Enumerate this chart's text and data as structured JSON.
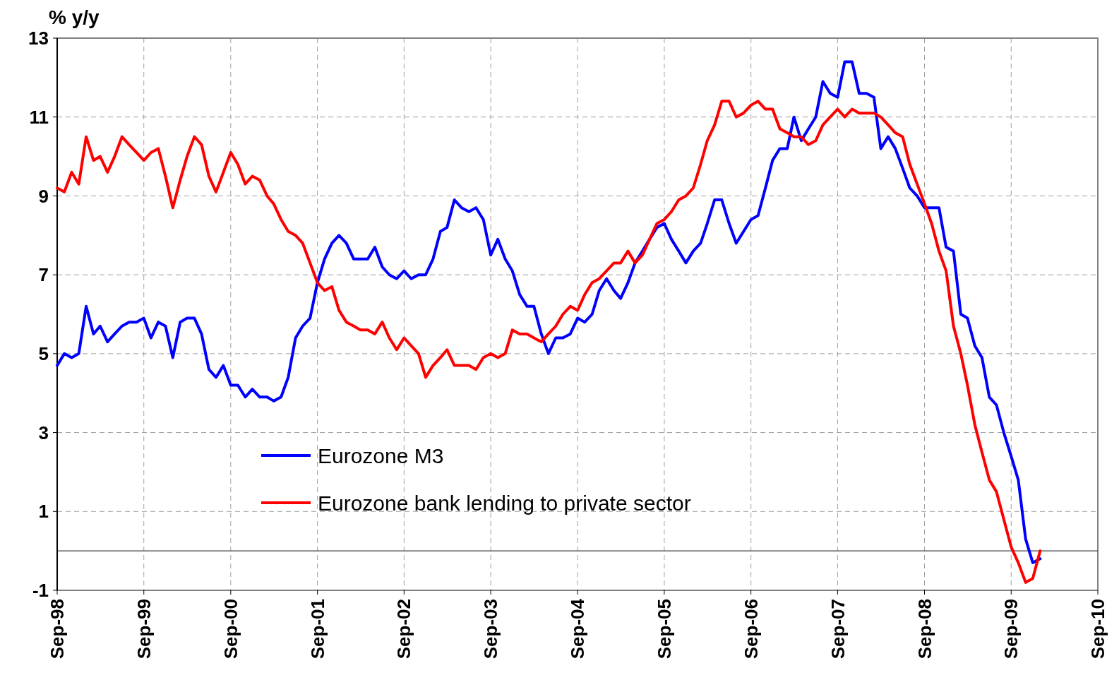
{
  "chart_data": {
    "type": "line",
    "ylabel": "% y/y",
    "x": [
      "1998-09",
      "1998-10",
      "1998-11",
      "1998-12",
      "1999-01",
      "1999-02",
      "1999-03",
      "1999-04",
      "1999-05",
      "1999-06",
      "1999-07",
      "1999-08",
      "1999-09",
      "1999-10",
      "1999-11",
      "1999-12",
      "2000-01",
      "2000-02",
      "2000-03",
      "2000-04",
      "2000-05",
      "2000-06",
      "2000-07",
      "2000-08",
      "2000-09",
      "2000-10",
      "2000-11",
      "2000-12",
      "2001-01",
      "2001-02",
      "2001-03",
      "2001-04",
      "2001-05",
      "2001-06",
      "2001-07",
      "2001-08",
      "2001-09",
      "2001-10",
      "2001-11",
      "2001-12",
      "2002-01",
      "2002-02",
      "2002-03",
      "2002-04",
      "2002-05",
      "2002-06",
      "2002-07",
      "2002-08",
      "2002-09",
      "2002-10",
      "2002-11",
      "2002-12",
      "2003-01",
      "2003-02",
      "2003-03",
      "2003-04",
      "2003-05",
      "2003-06",
      "2003-07",
      "2003-08",
      "2003-09",
      "2003-10",
      "2003-11",
      "2003-12",
      "2004-01",
      "2004-02",
      "2004-03",
      "2004-04",
      "2004-05",
      "2004-06",
      "2004-07",
      "2004-08",
      "2004-09",
      "2004-10",
      "2004-11",
      "2004-12",
      "2005-01",
      "2005-02",
      "2005-03",
      "2005-04",
      "2005-05",
      "2005-06",
      "2005-07",
      "2005-08",
      "2005-09",
      "2005-10",
      "2005-11",
      "2005-12",
      "2006-01",
      "2006-02",
      "2006-03",
      "2006-04",
      "2006-05",
      "2006-06",
      "2006-07",
      "2006-08",
      "2006-09",
      "2006-10",
      "2006-11",
      "2006-12",
      "2007-01",
      "2007-02",
      "2007-03",
      "2007-04",
      "2007-05",
      "2007-06",
      "2007-07",
      "2007-08",
      "2007-09",
      "2007-10",
      "2007-11",
      "2007-12",
      "2008-01",
      "2008-02",
      "2008-03",
      "2008-04",
      "2008-05",
      "2008-06",
      "2008-07",
      "2008-08",
      "2008-09",
      "2008-10",
      "2008-11",
      "2008-12",
      "2009-01",
      "2009-02",
      "2009-03",
      "2009-04",
      "2009-05",
      "2009-06",
      "2009-07",
      "2009-08",
      "2009-09",
      "2009-10",
      "2009-11",
      "2009-12",
      "2010-01"
    ],
    "series": [
      {
        "name": "Eurozone M3",
        "color": "#0000ff",
        "values": [
          4.7,
          5.0,
          4.9,
          5.0,
          6.2,
          5.5,
          5.7,
          5.3,
          5.5,
          5.7,
          5.8,
          5.8,
          5.9,
          5.4,
          5.8,
          5.7,
          4.9,
          5.8,
          5.9,
          5.9,
          5.5,
          4.6,
          4.4,
          4.7,
          4.2,
          4.2,
          3.9,
          4.1,
          3.9,
          3.9,
          3.8,
          3.9,
          4.4,
          5.4,
          5.7,
          5.9,
          6.8,
          7.4,
          7.8,
          8.0,
          7.8,
          7.4,
          7.4,
          7.4,
          7.7,
          7.2,
          7.0,
          6.9,
          7.1,
          6.9,
          7.0,
          7.0,
          7.4,
          8.1,
          8.2,
          8.9,
          8.7,
          8.6,
          8.7,
          8.4,
          7.5,
          7.9,
          7.4,
          7.1,
          6.5,
          6.2,
          6.2,
          5.5,
          5.0,
          5.4,
          5.4,
          5.5,
          5.9,
          5.8,
          6.0,
          6.6,
          6.9,
          6.6,
          6.4,
          6.8,
          7.3,
          7.6,
          7.9,
          8.2,
          8.3,
          7.9,
          7.6,
          7.3,
          7.6,
          7.8,
          8.3,
          8.9,
          8.9,
          8.3,
          7.8,
          8.1,
          8.4,
          8.5,
          9.2,
          9.9,
          10.2,
          10.2,
          11.0,
          10.4,
          10.7,
          11.0,
          11.9,
          11.6,
          11.5,
          12.4,
          12.4,
          11.6,
          11.6,
          11.5,
          10.2,
          10.5,
          10.2,
          9.7,
          9.2,
          9.0,
          8.7,
          8.7,
          8.7,
          7.7,
          7.6,
          6.0,
          5.9,
          5.2,
          4.9,
          3.9,
          3.7,
          3.0,
          2.4,
          1.8,
          0.3,
          -0.3,
          -0.2
        ]
      },
      {
        "name": "Eurozone bank lending to private sector",
        "color": "#ff0000",
        "values": [
          9.2,
          9.1,
          9.6,
          9.3,
          10.5,
          9.9,
          10.0,
          9.6,
          10.0,
          10.5,
          10.3,
          10.1,
          9.9,
          10.1,
          10.2,
          9.5,
          8.7,
          9.4,
          10.0,
          10.5,
          10.3,
          9.5,
          9.1,
          9.6,
          10.1,
          9.8,
          9.3,
          9.5,
          9.4,
          9.0,
          8.8,
          8.4,
          8.1,
          8.0,
          7.8,
          7.3,
          6.8,
          6.6,
          6.7,
          6.1,
          5.8,
          5.7,
          5.6,
          5.6,
          5.5,
          5.8,
          5.4,
          5.1,
          5.4,
          5.2,
          5.0,
          4.4,
          4.7,
          4.9,
          5.1,
          4.7,
          4.7,
          4.7,
          4.6,
          4.9,
          5.0,
          4.9,
          5.0,
          5.6,
          5.5,
          5.5,
          5.4,
          5.3,
          5.5,
          5.7,
          6.0,
          6.2,
          6.1,
          6.5,
          6.8,
          6.9,
          7.1,
          7.3,
          7.3,
          7.6,
          7.3,
          7.5,
          7.9,
          8.3,
          8.4,
          8.6,
          8.9,
          9.0,
          9.2,
          9.8,
          10.4,
          10.8,
          11.4,
          11.4,
          11.0,
          11.1,
          11.3,
          11.4,
          11.2,
          11.2,
          10.7,
          10.6,
          10.5,
          10.5,
          10.3,
          10.4,
          10.8,
          11.0,
          11.2,
          11.0,
          11.2,
          11.1,
          11.1,
          11.1,
          11.0,
          10.8,
          10.6,
          10.5,
          9.8,
          9.3,
          8.8,
          8.3,
          7.6,
          7.1,
          5.7,
          5.0,
          4.2,
          3.2,
          2.5,
          1.8,
          1.5,
          0.8,
          0.1,
          -0.3,
          -0.8,
          -0.7,
          0.0
        ]
      }
    ],
    "xlim": [
      "1998-09",
      "2010-09"
    ],
    "xticks": [
      {
        "value": "1998-09",
        "label": "Sep-98"
      },
      {
        "value": "1999-09",
        "label": "Sep-99"
      },
      {
        "value": "2000-09",
        "label": "Sep-00"
      },
      {
        "value": "2001-09",
        "label": "Sep-01"
      },
      {
        "value": "2002-09",
        "label": "Sep-02"
      },
      {
        "value": "2003-09",
        "label": "Sep-03"
      },
      {
        "value": "2004-09",
        "label": "Sep-04"
      },
      {
        "value": "2005-09",
        "label": "Sep-05"
      },
      {
        "value": "2006-09",
        "label": "Sep-06"
      },
      {
        "value": "2007-09",
        "label": "Sep-07"
      },
      {
        "value": "2008-09",
        "label": "Sep-08"
      },
      {
        "value": "2009-09",
        "label": "Sep-09"
      },
      {
        "value": "2010-09",
        "label": "Sep-10"
      }
    ],
    "ylim": [
      -1,
      13
    ],
    "yticks": [
      -1,
      1,
      3,
      5,
      7,
      9,
      11,
      13
    ],
    "ref_lines": [
      {
        "axis": "y",
        "value": 0,
        "color": "#404040"
      }
    ],
    "grid": true,
    "legend": "bottom",
    "line_style": "solid",
    "marker": "none"
  }
}
